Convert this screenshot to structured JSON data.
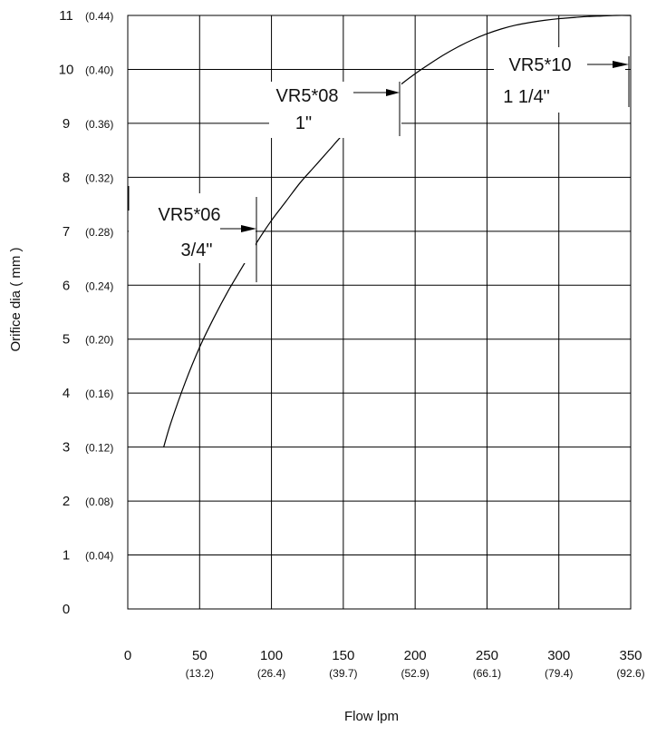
{
  "chart_data": {
    "type": "line",
    "xlabel": "Flow  lpm",
    "ylabel": "Orifice dia ( mm )",
    "xlim": [
      0,
      350
    ],
    "ylim": [
      0,
      11
    ],
    "grid": true,
    "x_ticks": [
      {
        "value": 0,
        "label": "0",
        "sub": ""
      },
      {
        "value": 50,
        "label": "50",
        "sub": "(13.2)"
      },
      {
        "value": 100,
        "label": "100",
        "sub": "(26.4)"
      },
      {
        "value": 150,
        "label": "150",
        "sub": "(39.7)"
      },
      {
        "value": 200,
        "label": "200",
        "sub": "(52.9)"
      },
      {
        "value": 250,
        "label": "250",
        "sub": "(66.1)"
      },
      {
        "value": 300,
        "label": "300",
        "sub": "(79.4)"
      },
      {
        "value": 350,
        "label": "350",
        "sub": "(92.6)"
      }
    ],
    "y_ticks": [
      {
        "value": 0,
        "label": "0",
        "sub": ""
      },
      {
        "value": 1,
        "label": "1",
        "sub": "(0.04)"
      },
      {
        "value": 2,
        "label": "2",
        "sub": "(0.08)"
      },
      {
        "value": 3,
        "label": "3",
        "sub": "(0.12)"
      },
      {
        "value": 4,
        "label": "4",
        "sub": "(0.16)"
      },
      {
        "value": 5,
        "label": "5",
        "sub": "(0.20)"
      },
      {
        "value": 6,
        "label": "6",
        "sub": "(0.24)"
      },
      {
        "value": 7,
        "label": "7",
        "sub": "(0.28)"
      },
      {
        "value": 8,
        "label": "8",
        "sub": "(0.32)"
      },
      {
        "value": 9,
        "label": "9",
        "sub": "(0.36)"
      },
      {
        "value": 10,
        "label": "10",
        "sub": "(0.40)"
      },
      {
        "value": 11,
        "label": "11",
        "sub": "(0.44)"
      }
    ],
    "series": [
      {
        "x": [
          25,
          30,
          40,
          50,
          60,
          70,
          80,
          90,
          100,
          110,
          120,
          130,
          140,
          150,
          160,
          170,
          180,
          190,
          200,
          210,
          220,
          230,
          240,
          250,
          260,
          270,
          280,
          290,
          300,
          310,
          320,
          330,
          340,
          350
        ],
        "y": [
          3.0,
          3.45,
          4.2,
          4.85,
          5.4,
          5.9,
          6.35,
          6.8,
          7.2,
          7.55,
          7.9,
          8.2,
          8.5,
          8.8,
          9.05,
          9.3,
          9.5,
          9.72,
          9.92,
          10.1,
          10.27,
          10.42,
          10.55,
          10.66,
          10.75,
          10.82,
          10.87,
          10.91,
          10.94,
          10.96,
          10.98,
          10.99,
          11.0,
          11.0
        ]
      }
    ],
    "annotations": [
      {
        "model": "VR5*06",
        "size": "3/4\"",
        "marker_x": 90
      },
      {
        "model": "VR5*08",
        "size": "1\"",
        "marker_x": 190
      },
      {
        "model": "VR5*10",
        "size": "1 1/4\"",
        "marker_x": 350
      }
    ]
  }
}
